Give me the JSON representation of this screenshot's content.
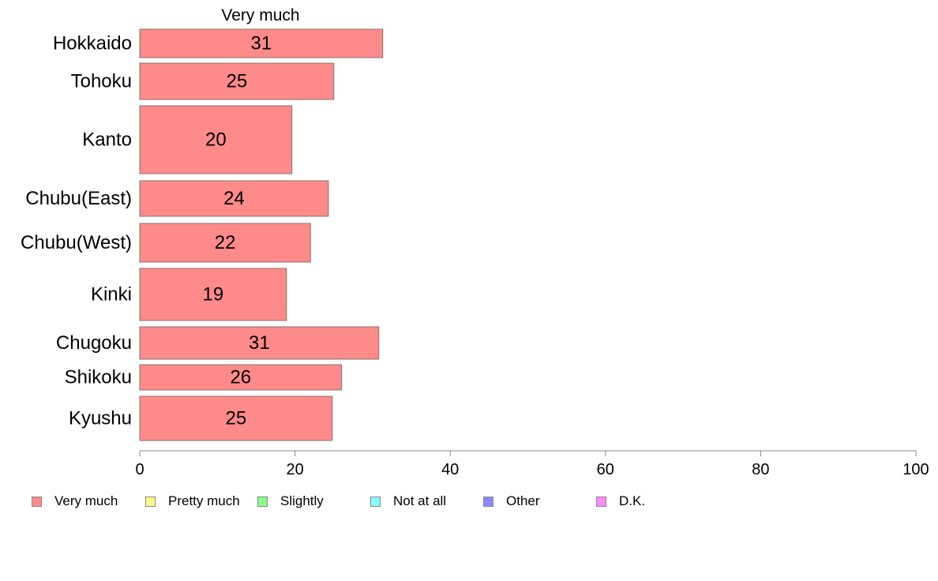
{
  "chart_data": {
    "type": "bar",
    "orientation": "horizontal",
    "title": "Very much",
    "categories": [
      "Hokkaido",
      "Tohoku",
      "Kanto",
      "Chubu(East)",
      "Chubu(West)",
      "Kinki",
      "Chugoku",
      "Shikoku",
      "Kyushu"
    ],
    "series": [
      {
        "name": "Very much",
        "color": "#ff8a8a",
        "values": [
          31,
          25,
          20,
          24,
          22,
          19,
          31,
          26,
          25
        ],
        "plotted_values": [
          31.3,
          25.0,
          19.6,
          24.3,
          22.0,
          18.9,
          30.8,
          26.0,
          24.8
        ]
      }
    ],
    "xlim": [
      0,
      100
    ],
    "xticks": [
      0,
      20,
      40,
      60,
      80,
      100
    ],
    "grid": false,
    "legend": {
      "position": "bottom",
      "entries": [
        {
          "label": "Very much",
          "color": "#ff8a8a"
        },
        {
          "label": "Pretty much",
          "color": "#ffff8a"
        },
        {
          "label": "Slightly",
          "color": "#8aff8a"
        },
        {
          "label": "Not at all",
          "color": "#8affff"
        },
        {
          "label": "Other",
          "color": "#8a8aff"
        },
        {
          "label": "D.K.",
          "color": "#ff8aff"
        }
      ]
    }
  }
}
